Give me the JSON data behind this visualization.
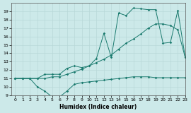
{
  "xlabel": "Humidex (Indice chaleur)",
  "bg_color": "#cce9e9",
  "line_color": "#1a7a6e",
  "grid_color": "#b8d8d8",
  "xlim": [
    -0.5,
    23
  ],
  "ylim": [
    9,
    20
  ],
  "yticks": [
    9,
    10,
    11,
    12,
    13,
    14,
    15,
    16,
    17,
    18,
    19
  ],
  "xticks": [
    0,
    1,
    2,
    3,
    4,
    5,
    6,
    7,
    8,
    9,
    10,
    11,
    12,
    13,
    14,
    15,
    16,
    17,
    18,
    19,
    20,
    21,
    22,
    23
  ],
  "line1_x": [
    0,
    1,
    2,
    3,
    4,
    5,
    6,
    7,
    8,
    9,
    10,
    11,
    12,
    13,
    14,
    15,
    16,
    17,
    18,
    19,
    20,
    21,
    22,
    23
  ],
  "line1_y": [
    11,
    11,
    11,
    10,
    9.5,
    8.8,
    8.8,
    9.5,
    10.3,
    10.5,
    10.6,
    10.7,
    10.8,
    10.9,
    11.0,
    11.1,
    11.2,
    11.2,
    11.2,
    11.1,
    11.1,
    11.1,
    11.1,
    11.1
  ],
  "line2_x": [
    0,
    1,
    2,
    3,
    4,
    5,
    6,
    7,
    8,
    9,
    10,
    11,
    12,
    13,
    14,
    15,
    16,
    17,
    18,
    19,
    20,
    21,
    22,
    23
  ],
  "line2_y": [
    11,
    11,
    11,
    11,
    11,
    11.2,
    11.2,
    11.5,
    11.8,
    12.1,
    12.5,
    12.9,
    13.3,
    13.8,
    14.5,
    15.2,
    15.7,
    16.3,
    17.0,
    17.5,
    17.5,
    17.3,
    16.8,
    13.5
  ],
  "line3_x": [
    0,
    1,
    2,
    3,
    4,
    5,
    6,
    7,
    8,
    9,
    10,
    11,
    12,
    13,
    14,
    15,
    16,
    17,
    18,
    19,
    20,
    21,
    22,
    23
  ],
  "line3_y": [
    11,
    11,
    11,
    11,
    11.5,
    11.5,
    11.5,
    12.2,
    12.5,
    12.3,
    12.5,
    13.4,
    16.4,
    13.5,
    18.8,
    18.5,
    19.4,
    19.3,
    19.2,
    19.2,
    15.2,
    15.3,
    19.1,
    13.5
  ]
}
